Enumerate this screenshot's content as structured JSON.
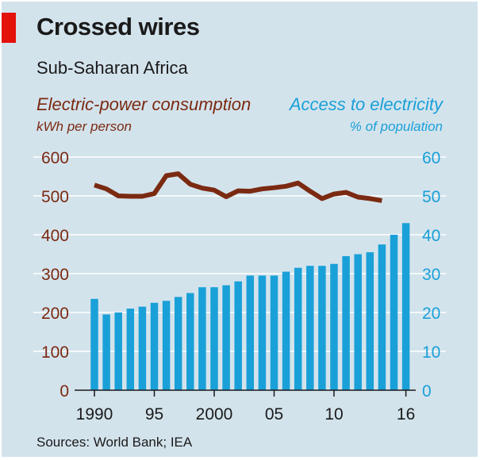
{
  "chart_data": {
    "type": "bar",
    "title": "Crossed wires",
    "subtitle": "Sub-Saharan Africa",
    "source": "Sources: World Bank; IEA",
    "x_tick_labels": [
      "1990",
      "95",
      "2000",
      "05",
      "10",
      "16"
    ],
    "x_tick_years": [
      1990,
      1995,
      2000,
      2005,
      2010,
      2016
    ],
    "xlim": [
      1990,
      2016
    ],
    "left_axis": {
      "label": "Electric-power consumption",
      "unit": "kWh per person",
      "ylim": [
        0,
        600
      ],
      "ticks": [
        0,
        100,
        200,
        300,
        400,
        500,
        600
      ],
      "color": "#7b2a12"
    },
    "right_axis": {
      "label": "Access to electricity",
      "unit": "% of population",
      "ylim": [
        0,
        60
      ],
      "ticks": [
        0,
        10,
        20,
        30,
        40,
        50,
        60
      ],
      "color": "#1aa0d8"
    },
    "grid": true,
    "series": [
      {
        "name": "Electric-power consumption",
        "type": "line",
        "axis": "left",
        "color": "#7b2a12",
        "x": [
          1990,
          1991,
          1992,
          1993,
          1994,
          1995,
          1996,
          1997,
          1998,
          1999,
          2000,
          2001,
          2002,
          2003,
          2004,
          2005,
          2006,
          2007,
          2008,
          2009,
          2010,
          2011,
          2012,
          2013,
          2014
        ],
        "values": [
          528,
          518,
          500,
          499,
          499,
          506,
          552,
          557,
          530,
          520,
          515,
          498,
          513,
          512,
          518,
          521,
          525,
          533,
          512,
          493,
          505,
          509,
          497,
          493,
          488
        ]
      },
      {
        "name": "Access to electricity",
        "type": "bar",
        "axis": "right",
        "color": "#1aa0d8",
        "x": [
          1990,
          1991,
          1992,
          1993,
          1994,
          1995,
          1996,
          1997,
          1998,
          1999,
          2000,
          2001,
          2002,
          2003,
          2004,
          2005,
          2006,
          2007,
          2008,
          2009,
          2010,
          2011,
          2012,
          2013,
          2014,
          2015,
          2016
        ],
        "values": [
          23.5,
          19.5,
          20,
          21,
          21.5,
          22.5,
          23,
          24,
          25,
          26.5,
          26.5,
          27,
          28,
          29.5,
          29.5,
          29.5,
          30.5,
          31.5,
          32,
          32,
          32.5,
          34.5,
          35,
          35.5,
          37.5,
          40,
          43
        ]
      }
    ]
  }
}
